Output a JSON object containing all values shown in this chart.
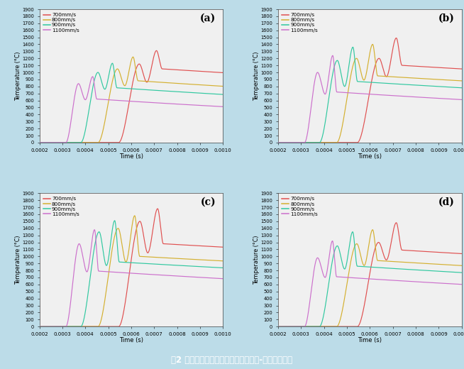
{
  "panels": [
    "(a)",
    "(b)",
    "(c)",
    "(d)"
  ],
  "legend_labels": [
    "700mm/s",
    "800mm/s",
    "900mm/s",
    "1100mm/s"
  ],
  "colors": [
    "#e05050",
    "#d4b030",
    "#30c8a0",
    "#cc70cc"
  ],
  "xlim": [
    0.0002,
    0.001
  ],
  "ylim": [
    0,
    1900
  ],
  "yticks": [
    0,
    100,
    200,
    300,
    400,
    500,
    600,
    700,
    800,
    900,
    1000,
    1100,
    1200,
    1300,
    1400,
    1500,
    1600,
    1700,
    1800,
    1900
  ],
  "xticks": [
    0.0002,
    0.0003,
    0.0004,
    0.0005,
    0.0006,
    0.0007,
    0.0008,
    0.0009,
    0.001
  ],
  "xlabel": "Time (s)",
  "ylabel": "Temperature (°C)",
  "background_color": "#bcdce8",
  "plot_bg": "#f0f0f0",
  "footer_text": "图2 不同工艺下金屚石颗粒的最高温度-时间变化曲线",
  "footer_bg": "#1a5fa8",
  "footer_text_color": "#ffffff"
}
